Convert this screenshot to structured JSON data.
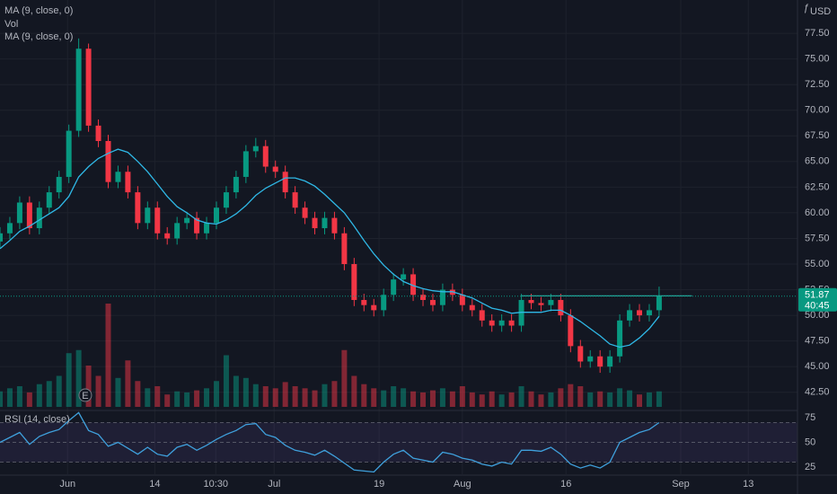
{
  "chart_data": {
    "type": "candlestick",
    "legend": [
      "MA (9, close, 0)",
      "Vol",
      "MA (9, close, 0)"
    ],
    "rsi_title": "RSI (14, close)",
    "currency": "USD",
    "countdown": "40:45",
    "up_color": "#089981",
    "down_color": "#f23645",
    "ma_color": "#2fb8e6",
    "rsi_color": "#3fa0dc",
    "rsi_band_color": "#7e57c2",
    "level_color": "#26a69a",
    "grid": true,
    "x": [
      0,
      1.5,
      3,
      4.5,
      6,
      7.5,
      9,
      10.5,
      12,
      13.5,
      15,
      16.5,
      18,
      19.5,
      21,
      22.5,
      24,
      25.5,
      27,
      28.5,
      30,
      31.5,
      33,
      34.5,
      36,
      37.5,
      39,
      40.5,
      42,
      43.5,
      45,
      46.5,
      48,
      49.5,
      51,
      52.5,
      54,
      55.5,
      57,
      58.5,
      60,
      61.5,
      63,
      64.5,
      66,
      67.5,
      69,
      70.5,
      72,
      73.5,
      75,
      76.5,
      78,
      79.5,
      81,
      82.5,
      84,
      85.5,
      87,
      88.5,
      90,
      91.5,
      93,
      94.5,
      96,
      97.5,
      99,
      100.5
    ],
    "open": [
      57.2,
      58,
      59,
      61,
      58.5,
      60.5,
      62,
      63.5,
      68,
      76,
      68.5,
      67,
      63,
      64,
      62,
      59,
      60.5,
      58,
      57.5,
      59,
      59.5,
      58,
      59,
      60.5,
      62,
      63.5,
      66,
      66.5,
      64.5,
      64,
      62,
      60.5,
      59.5,
      58.5,
      59.5,
      58,
      55,
      51.5,
      51,
      50.5,
      52,
      53.5,
      54,
      52,
      51.5,
      51,
      52.5,
      52,
      51,
      50.5,
      49.5,
      49,
      49.5,
      49,
      51.5,
      51.2,
      51,
      51.5,
      50,
      47,
      45.5,
      46,
      45,
      46,
      49.5,
      50.5,
      50,
      50.5
    ],
    "high": [
      58.6,
      59.6,
      61.6,
      61.6,
      61.1,
      62.6,
      64.1,
      68.6,
      77,
      76.5,
      69.1,
      67.6,
      64.6,
      64.6,
      62.6,
      61.1,
      61.1,
      58.6,
      59.6,
      60.1,
      60.1,
      59.6,
      61.1,
      62.6,
      64.1,
      66.6,
      67.3,
      67.1,
      65.1,
      64.6,
      62.6,
      61.1,
      60.1,
      60.1,
      60.1,
      58.6,
      55.6,
      52.1,
      51.6,
      52.6,
      54.1,
      54.6,
      54.6,
      52.6,
      52.1,
      53.1,
      53.1,
      52.6,
      51.6,
      51.1,
      50.1,
      50.1,
      50.1,
      52.1,
      52.1,
      51.8,
      52.1,
      52.1,
      50.6,
      47.6,
      46.6,
      46.6,
      46.6,
      50.1,
      51.1,
      51.1,
      51.1,
      52.8
    ],
    "low": [
      56.6,
      57.4,
      58.4,
      57.9,
      57.9,
      59.9,
      61.4,
      62.9,
      67.4,
      67.9,
      66.4,
      62.4,
      62.4,
      61.4,
      58.4,
      58.4,
      57.4,
      56.9,
      56.9,
      58.4,
      57.4,
      57.4,
      58.4,
      59.9,
      61.4,
      62.9,
      65.4,
      63.9,
      63.4,
      61.4,
      59.9,
      58.9,
      57.9,
      57.9,
      57.4,
      54.4,
      50.9,
      50.4,
      49.9,
      49.9,
      51.4,
      52.9,
      51.4,
      50.9,
      50.4,
      50.4,
      51.4,
      50.4,
      49.9,
      48.9,
      48.4,
      48.4,
      48.4,
      48.4,
      50.6,
      50.4,
      50.4,
      49.4,
      46.4,
      44.9,
      44.9,
      44.4,
      44.4,
      45.4,
      48.9,
      49.4,
      49.4,
      49.9
    ],
    "close": [
      58,
      59,
      61,
      58.5,
      60.5,
      62,
      63.5,
      68,
      76,
      68.5,
      67,
      63,
      64,
      62,
      59,
      60.5,
      58,
      57.5,
      59,
      59.5,
      58,
      59,
      60.5,
      62,
      63.5,
      66,
      66.5,
      64.5,
      64,
      62,
      60.5,
      59.5,
      58.5,
      59.5,
      58,
      55,
      51.5,
      51,
      50.5,
      52,
      53.5,
      54,
      52,
      51.5,
      51,
      52.5,
      52,
      51,
      50.5,
      49.5,
      49,
      49.5,
      49,
      51.5,
      51.2,
      51,
      51.5,
      50,
      47,
      45.5,
      46,
      45,
      46,
      49.5,
      50.5,
      50,
      50.5,
      51.87
    ],
    "volume": [
      15,
      18,
      20,
      14,
      22,
      25,
      30,
      52,
      55,
      40,
      30,
      100,
      28,
      45,
      25,
      18,
      20,
      12,
      15,
      14,
      16,
      18,
      25,
      50,
      30,
      28,
      22,
      20,
      18,
      24,
      20,
      18,
      16,
      22,
      25,
      55,
      30,
      22,
      18,
      16,
      20,
      18,
      15,
      14,
      16,
      18,
      15,
      20,
      14,
      12,
      15,
      12,
      14,
      20,
      15,
      12,
      14,
      18,
      22,
      20,
      14,
      15,
      14,
      18,
      16,
      12,
      14,
      15
    ],
    "ma": [
      56.5,
      57.3,
      58.2,
      58.7,
      59.3,
      59.9,
      60.5,
      61.6,
      63.5,
      64.5,
      65.3,
      65.8,
      66.2,
      65.9,
      65.0,
      64.0,
      62.8,
      61.6,
      60.6,
      60.0,
      59.3,
      59.0,
      58.9,
      59.3,
      59.9,
      60.7,
      61.7,
      62.4,
      62.9,
      63.4,
      63.4,
      63.1,
      62.6,
      61.8,
      60.9,
      60.0,
      58.7,
      57.3,
      56.0,
      54.9,
      54.0,
      53.3,
      52.9,
      52.6,
      52.4,
      52.3,
      52.3,
      52.0,
      51.7,
      51.2,
      50.7,
      50.5,
      50.2,
      50.3,
      50.3,
      50.3,
      50.5,
      50.5,
      50.0,
      49.4,
      48.7,
      48.0,
      47.2,
      46.9,
      47.1,
      47.8,
      48.7,
      49.9
    ],
    "rsi": [
      50,
      55,
      60,
      48,
      56,
      60,
      63,
      72,
      80,
      62,
      58,
      46,
      50,
      44,
      38,
      45,
      38,
      36,
      45,
      48,
      42,
      47,
      53,
      58,
      62,
      68,
      69,
      58,
      55,
      47,
      42,
      40,
      37,
      42,
      36,
      29,
      22,
      21,
      20,
      30,
      38,
      42,
      34,
      32,
      30,
      40,
      38,
      34,
      32,
      28,
      26,
      30,
      28,
      42,
      42,
      41,
      45,
      38,
      28,
      24,
      27,
      24,
      30,
      50,
      55,
      60,
      63,
      70
    ],
    "xlim": [
      0,
      121.6
    ],
    "xticks": [
      {
        "value": 10.3,
        "label": "Jun"
      },
      {
        "value": 23.6,
        "label": "14"
      },
      {
        "value": 32.9,
        "label": "10:30"
      },
      {
        "value": 41.8,
        "label": "Jul"
      },
      {
        "value": 57.8,
        "label": "19"
      },
      {
        "value": 70.5,
        "label": "Aug"
      },
      {
        "value": 86.3,
        "label": "16"
      },
      {
        "value": 103.8,
        "label": "Sep"
      },
      {
        "value": 114.1,
        "label": "13"
      }
    ],
    "ylim": [
      40.9,
      80.75
    ],
    "yticks": [
      {
        "value": 42.5,
        "label": "42.50"
      },
      {
        "value": 45,
        "label": "45.00"
      },
      {
        "value": 47.5,
        "label": "47.50"
      },
      {
        "value": 50,
        "label": "50.00"
      },
      {
        "value": 52.5,
        "label": "52.50"
      },
      {
        "value": 55,
        "label": "55.00"
      },
      {
        "value": 57.5,
        "label": "57.50"
      },
      {
        "value": 60,
        "label": "60.00"
      },
      {
        "value": 62.5,
        "label": "62.50"
      },
      {
        "value": 65,
        "label": "65.00"
      },
      {
        "value": 67.5,
        "label": "67.50"
      },
      {
        "value": 70,
        "label": "70.00"
      },
      {
        "value": 72.5,
        "label": "72.50"
      },
      {
        "value": 75,
        "label": "75.00"
      },
      {
        "value": 77.5,
        "label": "77.50"
      }
    ],
    "vol_ylim": [
      0,
      100
    ],
    "rsi_ylim": [
      17.7,
      79.5
    ],
    "rsi_yticks": [
      25,
      50,
      75
    ],
    "rsi_bands": [
      30,
      50,
      70
    ],
    "level_line": {
      "value": 51.9,
      "x": [
        79.5,
        105.5
      ]
    },
    "event_markers": [
      {
        "x": 13,
        "label": "E"
      }
    ]
  }
}
